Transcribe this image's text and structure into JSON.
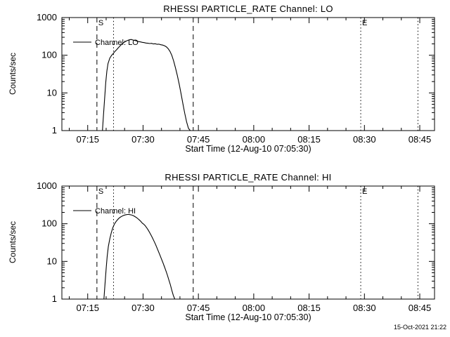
{
  "page": {
    "background": "#ffffff",
    "line_color": "#000000",
    "footer_timestamp": "15-Oct-2021 21:22"
  },
  "chart_data": [
    {
      "type": "line",
      "title": "RHESSI PARTICLE_RATE Channel: LO",
      "xlabel": "Start Time (12-Aug-10 07:05:30)",
      "ylabel": "Counts/sec",
      "legend": {
        "label": "Channel: LO",
        "position": "upper-left-inside"
      },
      "x_axis": {
        "unit": "minutes-after-07:00",
        "lim": [
          8,
          109
        ],
        "major_ticks": [
          15,
          30,
          45,
          60,
          75,
          90,
          105
        ],
        "major_labels": [
          "07:15",
          "07:30",
          "07:45",
          "08:00",
          "08:15",
          "08:30",
          "08:45"
        ],
        "minor_step": 5
      },
      "y_axis": {
        "scale": "log",
        "lim": [
          1,
          1000
        ],
        "ticks": [
          1,
          10,
          100,
          1000
        ],
        "labels": [
          "1",
          "10",
          "100",
          "1000"
        ],
        "minor_log_decades": [
          1,
          10,
          100
        ]
      },
      "vlines": [
        {
          "style": "dashed",
          "minute": 17.5,
          "time": "07:17:30",
          "label": "S"
        },
        {
          "style": "dotted",
          "minute": 22.0,
          "time": "07:22",
          "label": ""
        },
        {
          "style": "dashed",
          "minute": 43.6,
          "time": "07:43:40",
          "label": ""
        },
        {
          "style": "dotted",
          "minute": 89.0,
          "time": "08:29",
          "label": "E"
        },
        {
          "style": "dotted",
          "minute": 104.5,
          "time": "08:44:30",
          "label": ""
        }
      ],
      "series": [
        {
          "name": "Channel: LO",
          "points": [
            [
              19.0,
              1.0
            ],
            [
              19.3,
              2.8
            ],
            [
              19.6,
              7.5
            ],
            [
              19.9,
              19
            ],
            [
              20.2,
              38
            ],
            [
              20.5,
              60
            ],
            [
              21.0,
              84
            ],
            [
              21.5,
              100
            ],
            [
              22.0,
              113
            ],
            [
              22.3,
              124
            ],
            [
              22.8,
              139
            ],
            [
              23.3,
              158
            ],
            [
              23.8,
              178
            ],
            [
              24.3,
              199
            ],
            [
              24.8,
              218
            ],
            [
              25.3,
              234
            ],
            [
              25.8,
              247
            ],
            [
              26.3,
              257
            ],
            [
              26.8,
              262
            ],
            [
              27.3,
              252
            ],
            [
              27.8,
              247
            ],
            [
              28.3,
              238
            ],
            [
              28.8,
              231
            ],
            [
              29.3,
              226
            ],
            [
              29.8,
              220
            ],
            [
              30.3,
              216
            ],
            [
              30.8,
              211
            ],
            [
              31.3,
              208
            ],
            [
              31.8,
              204
            ],
            [
              32.3,
              207
            ],
            [
              32.8,
              199
            ],
            [
              33.3,
              202
            ],
            [
              33.8,
              195
            ],
            [
              34.3,
              197
            ],
            [
              34.8,
              190
            ],
            [
              35.3,
              186
            ],
            [
              35.8,
              179
            ],
            [
              36.3,
              168
            ],
            [
              36.8,
              150
            ],
            [
              37.3,
              126
            ],
            [
              37.8,
              99
            ],
            [
              38.3,
              70
            ],
            [
              38.8,
              46
            ],
            [
              39.3,
              29
            ],
            [
              39.8,
              17
            ],
            [
              40.3,
              9.5
            ],
            [
              40.8,
              5.2
            ],
            [
              41.3,
              2.9
            ],
            [
              41.8,
              1.7
            ],
            [
              42.3,
              1.15
            ],
            [
              42.8,
              1.0
            ]
          ]
        }
      ]
    },
    {
      "type": "line",
      "title": "RHESSI PARTICLE_RATE Channel: HI",
      "xlabel": "Start Time (12-Aug-10 07:05:30)",
      "ylabel": "Counts/sec",
      "legend": {
        "label": "Channel: HI",
        "position": "upper-left-inside"
      },
      "x_axis": {
        "unit": "minutes-after-07:00",
        "lim": [
          8,
          109
        ],
        "major_ticks": [
          15,
          30,
          45,
          60,
          75,
          90,
          105
        ],
        "major_labels": [
          "07:15",
          "07:30",
          "07:45",
          "08:00",
          "08:15",
          "08:30",
          "08:45"
        ],
        "minor_step": 5
      },
      "y_axis": {
        "scale": "log",
        "lim": [
          1,
          1000
        ],
        "ticks": [
          1,
          10,
          100,
          1000
        ],
        "labels": [
          "1",
          "10",
          "100",
          "1000"
        ],
        "minor_log_decades": [
          1,
          10,
          100
        ]
      },
      "vlines": [
        {
          "style": "dashed",
          "minute": 17.5,
          "time": "07:17:30",
          "label": "S"
        },
        {
          "style": "dotted",
          "minute": 22.0,
          "time": "07:22",
          "label": ""
        },
        {
          "style": "dashed",
          "minute": 43.6,
          "time": "07:43:40",
          "label": ""
        },
        {
          "style": "dotted",
          "minute": 89.0,
          "time": "08:29",
          "label": "E"
        },
        {
          "style": "dotted",
          "minute": 104.5,
          "time": "08:44:30",
          "label": ""
        }
      ],
      "series": [
        {
          "name": "Channel: HI",
          "points": [
            [
              19.4,
              1.0
            ],
            [
              19.7,
              2.6
            ],
            [
              20.0,
              6.5
            ],
            [
              20.3,
              14
            ],
            [
              20.6,
              25
            ],
            [
              21.0,
              40
            ],
            [
              21.4,
              58
            ],
            [
              21.8,
              78
            ],
            [
              22.2,
              96
            ],
            [
              22.6,
              111
            ],
            [
              23.0,
              125
            ],
            [
              23.4,
              138
            ],
            [
              23.8,
              148
            ],
            [
              24.2,
              157
            ],
            [
              24.6,
              164
            ],
            [
              25.0,
              170
            ],
            [
              25.4,
              174
            ],
            [
              25.8,
              176
            ],
            [
              26.2,
              176
            ],
            [
              26.6,
              173
            ],
            [
              27.0,
              169
            ],
            [
              27.4,
              163
            ],
            [
              27.8,
              155
            ],
            [
              28.2,
              146
            ],
            [
              28.6,
              136
            ],
            [
              29.0,
              126
            ],
            [
              29.4,
              115
            ],
            [
              29.8,
              104
            ],
            [
              30.2,
              97
            ],
            [
              30.6,
              88
            ],
            [
              31.0,
              78
            ],
            [
              31.4,
              68
            ],
            [
              31.8,
              58
            ],
            [
              32.2,
              49
            ],
            [
              32.6,
              41
            ],
            [
              33.0,
              34
            ],
            [
              33.4,
              28
            ],
            [
              33.8,
              22.5
            ],
            [
              34.2,
              18
            ],
            [
              34.6,
              14.5
            ],
            [
              35.0,
              11.5
            ],
            [
              35.4,
              9.2
            ],
            [
              35.8,
              7.2
            ],
            [
              36.2,
              5.6
            ],
            [
              36.6,
              4.3
            ],
            [
              37.0,
              3.2
            ],
            [
              37.4,
              2.4
            ],
            [
              37.8,
              1.7
            ],
            [
              38.2,
              1.25
            ],
            [
              38.6,
              1.0
            ]
          ]
        }
      ]
    }
  ]
}
